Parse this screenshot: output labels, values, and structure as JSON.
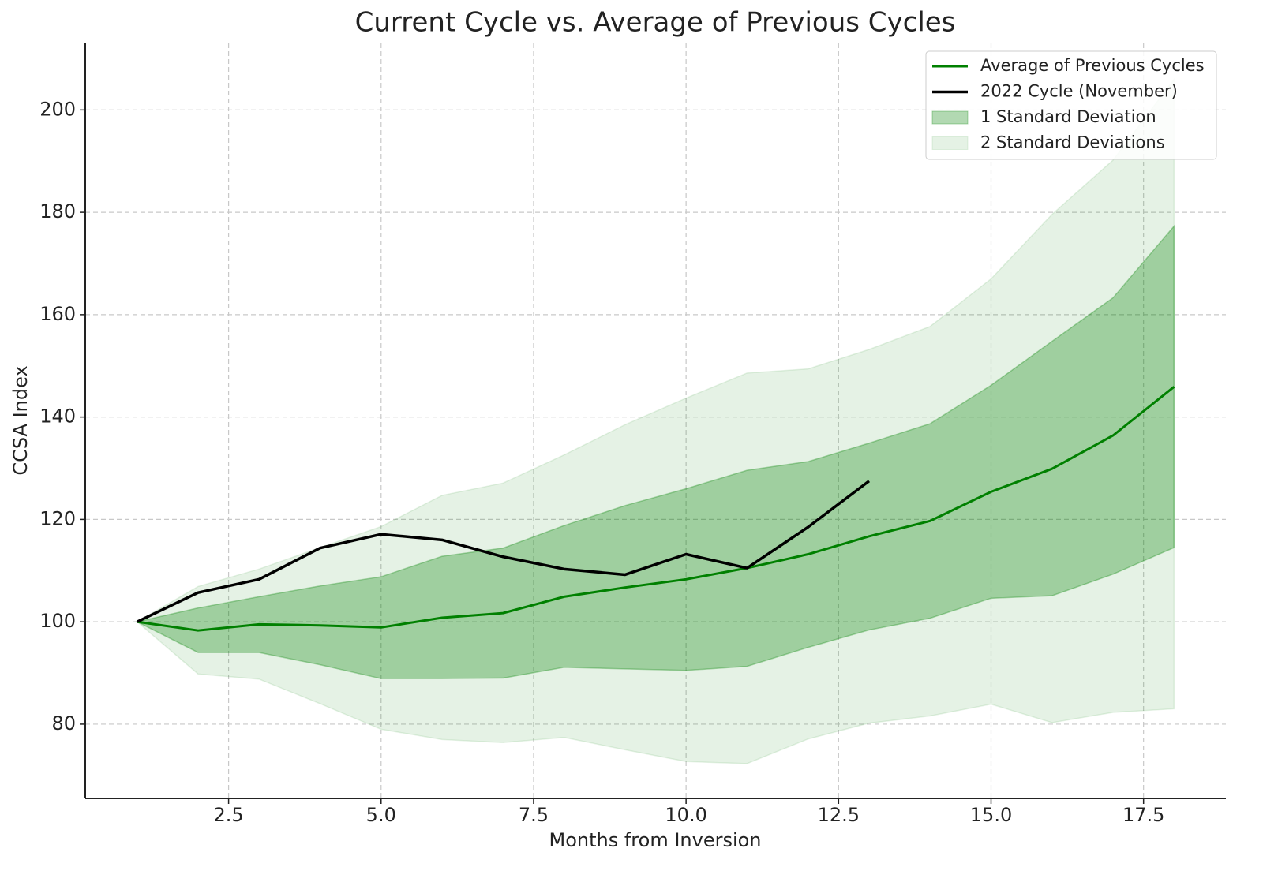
{
  "chart_data": {
    "type": "line",
    "title": "Current Cycle vs. Average of Previous Cycles",
    "x_label": "Months from Inversion",
    "y_label": "CCSA Index",
    "x": [
      1,
      2,
      3,
      4,
      5,
      6,
      7,
      8,
      9,
      10,
      11,
      12,
      13,
      14,
      15,
      16,
      17,
      18
    ],
    "series": [
      {
        "name": "Average of Previous Cycles",
        "kind": "line",
        "color": "#008000",
        "values": [
          100,
          98.3,
          99.5,
          99.3,
          98.9,
          100.8,
          101.7,
          104.9,
          106.7,
          108.3,
          110.5,
          113.2,
          116.7,
          119.7,
          125.4,
          129.9,
          136.4,
          145.9
        ]
      },
      {
        "name": "2022 Cycle (November)",
        "kind": "line",
        "color": "#000000",
        "values": [
          100,
          105.7,
          108.3,
          114.4,
          117.1,
          116,
          112.7,
          110.3,
          109.2,
          113.2,
          110.5,
          118.5,
          127.5,
          null,
          null,
          null,
          null,
          null
        ]
      },
      {
        "name": "1 Standard Deviation",
        "kind": "band",
        "color": "#008000",
        "opacity": 0.3,
        "values": [
          100,
          102.7,
          104.9,
          107,
          108.8,
          112.8,
          114.4,
          118.8,
          122.7,
          126,
          129.6,
          131.3,
          134.9,
          138.7,
          146.2,
          154.8,
          163.3,
          177.3
        ],
        "lower": [
          100,
          94,
          94,
          91.6,
          88.9,
          88.9,
          89,
          91.1,
          90.8,
          90.5,
          91.3,
          95,
          98.4,
          100.7,
          104.6,
          105.1,
          109.3,
          114.5
        ]
      },
      {
        "name": "2 Standard Deviations",
        "kind": "band",
        "color": "#008000",
        "opacity": 0.1,
        "values": [
          100,
          106.9,
          110.3,
          114.5,
          118.6,
          124.7,
          127.1,
          132.6,
          138.5,
          143.7,
          148.6,
          149.4,
          153.2,
          157.7,
          167,
          179.6,
          190.2,
          206
        ],
        "lower": [
          100,
          89.8,
          88.8,
          84,
          79,
          77,
          76.4,
          77.4,
          75,
          72.7,
          72.3,
          77.1,
          80.2,
          81.6,
          83.9,
          80.3,
          82.3,
          83
        ]
      }
    ],
    "xlim": [
      0.15,
      18.85
    ],
    "ylim": [
      65.5,
      213
    ],
    "xticks": [
      2.5,
      {
        "value": 5,
        "label": "5.0"
      },
      7.5,
      {
        "value": 10,
        "label": "10.0"
      },
      12.5,
      {
        "value": 15,
        "label": "15.0"
      },
      17.5
    ],
    "yticks": [
      80,
      100,
      120,
      140,
      160,
      180,
      200
    ],
    "grid": true,
    "legend": "upper right"
  }
}
